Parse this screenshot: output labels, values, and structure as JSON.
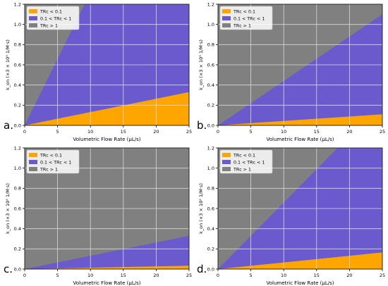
{
  "colors": {
    "trc_low": "#FFA500",
    "trc_mid": "#6A5ACD",
    "trc_high": "#808080",
    "grid": "#b0b0b0",
    "axis": "#000000"
  },
  "chart_data": [
    {
      "panel_label": "a.",
      "type": "area",
      "xlabel": "Volumetric Flow Rate (μL/s)",
      "ylabel": "k_on (×3 × 10⁵ 1/M·s)",
      "xlim": [
        0,
        25
      ],
      "ylim": [
        0,
        1.2
      ],
      "xticks": [
        "0",
        "5",
        "10",
        "15",
        "20",
        "25"
      ],
      "yticks": [
        "0.0",
        "0.2",
        "0.4",
        "0.6",
        "0.8",
        "1.0",
        "1.2"
      ],
      "grid": true,
      "legend_position": "top-left",
      "legend": [
        "TRc < 0.1",
        "0.1 < TRc < 1",
        "TRc > 1"
      ],
      "boundary_lines": [
        {
          "name": "TRc = 0.1",
          "x": [
            0,
            25
          ],
          "y": [
            0,
            0.33
          ]
        },
        {
          "name": "TRc = 1",
          "x": [
            0,
            9.1
          ],
          "y": [
            0,
            1.2
          ]
        }
      ]
    },
    {
      "panel_label": "b.",
      "type": "area",
      "xlabel": "Volumetric Flow Rate (μL/s)",
      "ylabel": "k_on (×3 × 10⁵ 1/M·s)",
      "xlim": [
        0,
        25
      ],
      "ylim": [
        0,
        1.2
      ],
      "xticks": [
        "0",
        "5",
        "10",
        "15",
        "20",
        "25"
      ],
      "yticks": [
        "0.0",
        "0.2",
        "0.4",
        "0.6",
        "0.8",
        "1.0",
        "1.2"
      ],
      "grid": true,
      "legend_position": "top-left",
      "legend": [
        "TRc < 0.1",
        "0.1 < TRc < 1",
        "TRc > 1"
      ],
      "boundary_lines": [
        {
          "name": "TRc = 0.1",
          "x": [
            0,
            25
          ],
          "y": [
            0,
            0.11
          ]
        },
        {
          "name": "TRc = 1",
          "x": [
            0,
            25
          ],
          "y": [
            0,
            1.1
          ]
        }
      ]
    },
    {
      "panel_label": "c.",
      "type": "area",
      "xlabel": "Volumetric Flow Rate (μL/s)",
      "ylabel": "k_on (×3 × 10⁵ 1/M·s)",
      "xlim": [
        0,
        25
      ],
      "ylim": [
        0,
        1.2
      ],
      "xticks": [
        "0",
        "5",
        "10",
        "15",
        "20",
        "25"
      ],
      "yticks": [
        "0.0",
        "0.2",
        "0.4",
        "0.6",
        "0.8",
        "1.0",
        "1.2"
      ],
      "grid": true,
      "legend_position": "top-left",
      "legend": [
        "TRc < 0.1",
        "0.1 < TRc < 1",
        "TRc > 1"
      ],
      "boundary_lines": [
        {
          "name": "TRc = 0.1",
          "x": [
            0,
            25
          ],
          "y": [
            0,
            0.033
          ]
        },
        {
          "name": "TRc = 1",
          "x": [
            0,
            25
          ],
          "y": [
            0,
            0.33
          ]
        }
      ]
    },
    {
      "panel_label": "d.",
      "type": "area",
      "xlabel": "Volumetric Flow Rate (μL/s)",
      "ylabel": "k_on (×3 × 10⁵ 1/M·s)",
      "xlim": [
        0,
        25
      ],
      "ylim": [
        0,
        1.2
      ],
      "xticks": [
        "0",
        "5",
        "10",
        "15",
        "20",
        "25"
      ],
      "yticks": [
        "0.0",
        "0.2",
        "0.4",
        "0.6",
        "0.8",
        "1.0",
        "1.2"
      ],
      "grid": true,
      "legend_position": "top-left",
      "legend": [
        "TRc < 0.1",
        "0.1 < TRc < 1",
        "TRc > 1"
      ],
      "boundary_lines": [
        {
          "name": "TRc = 0.1",
          "x": [
            0,
            25
          ],
          "y": [
            0,
            0.165
          ]
        },
        {
          "name": "TRc = 1",
          "x": [
            0,
            18.2
          ],
          "y": [
            0,
            1.2
          ]
        }
      ]
    }
  ]
}
